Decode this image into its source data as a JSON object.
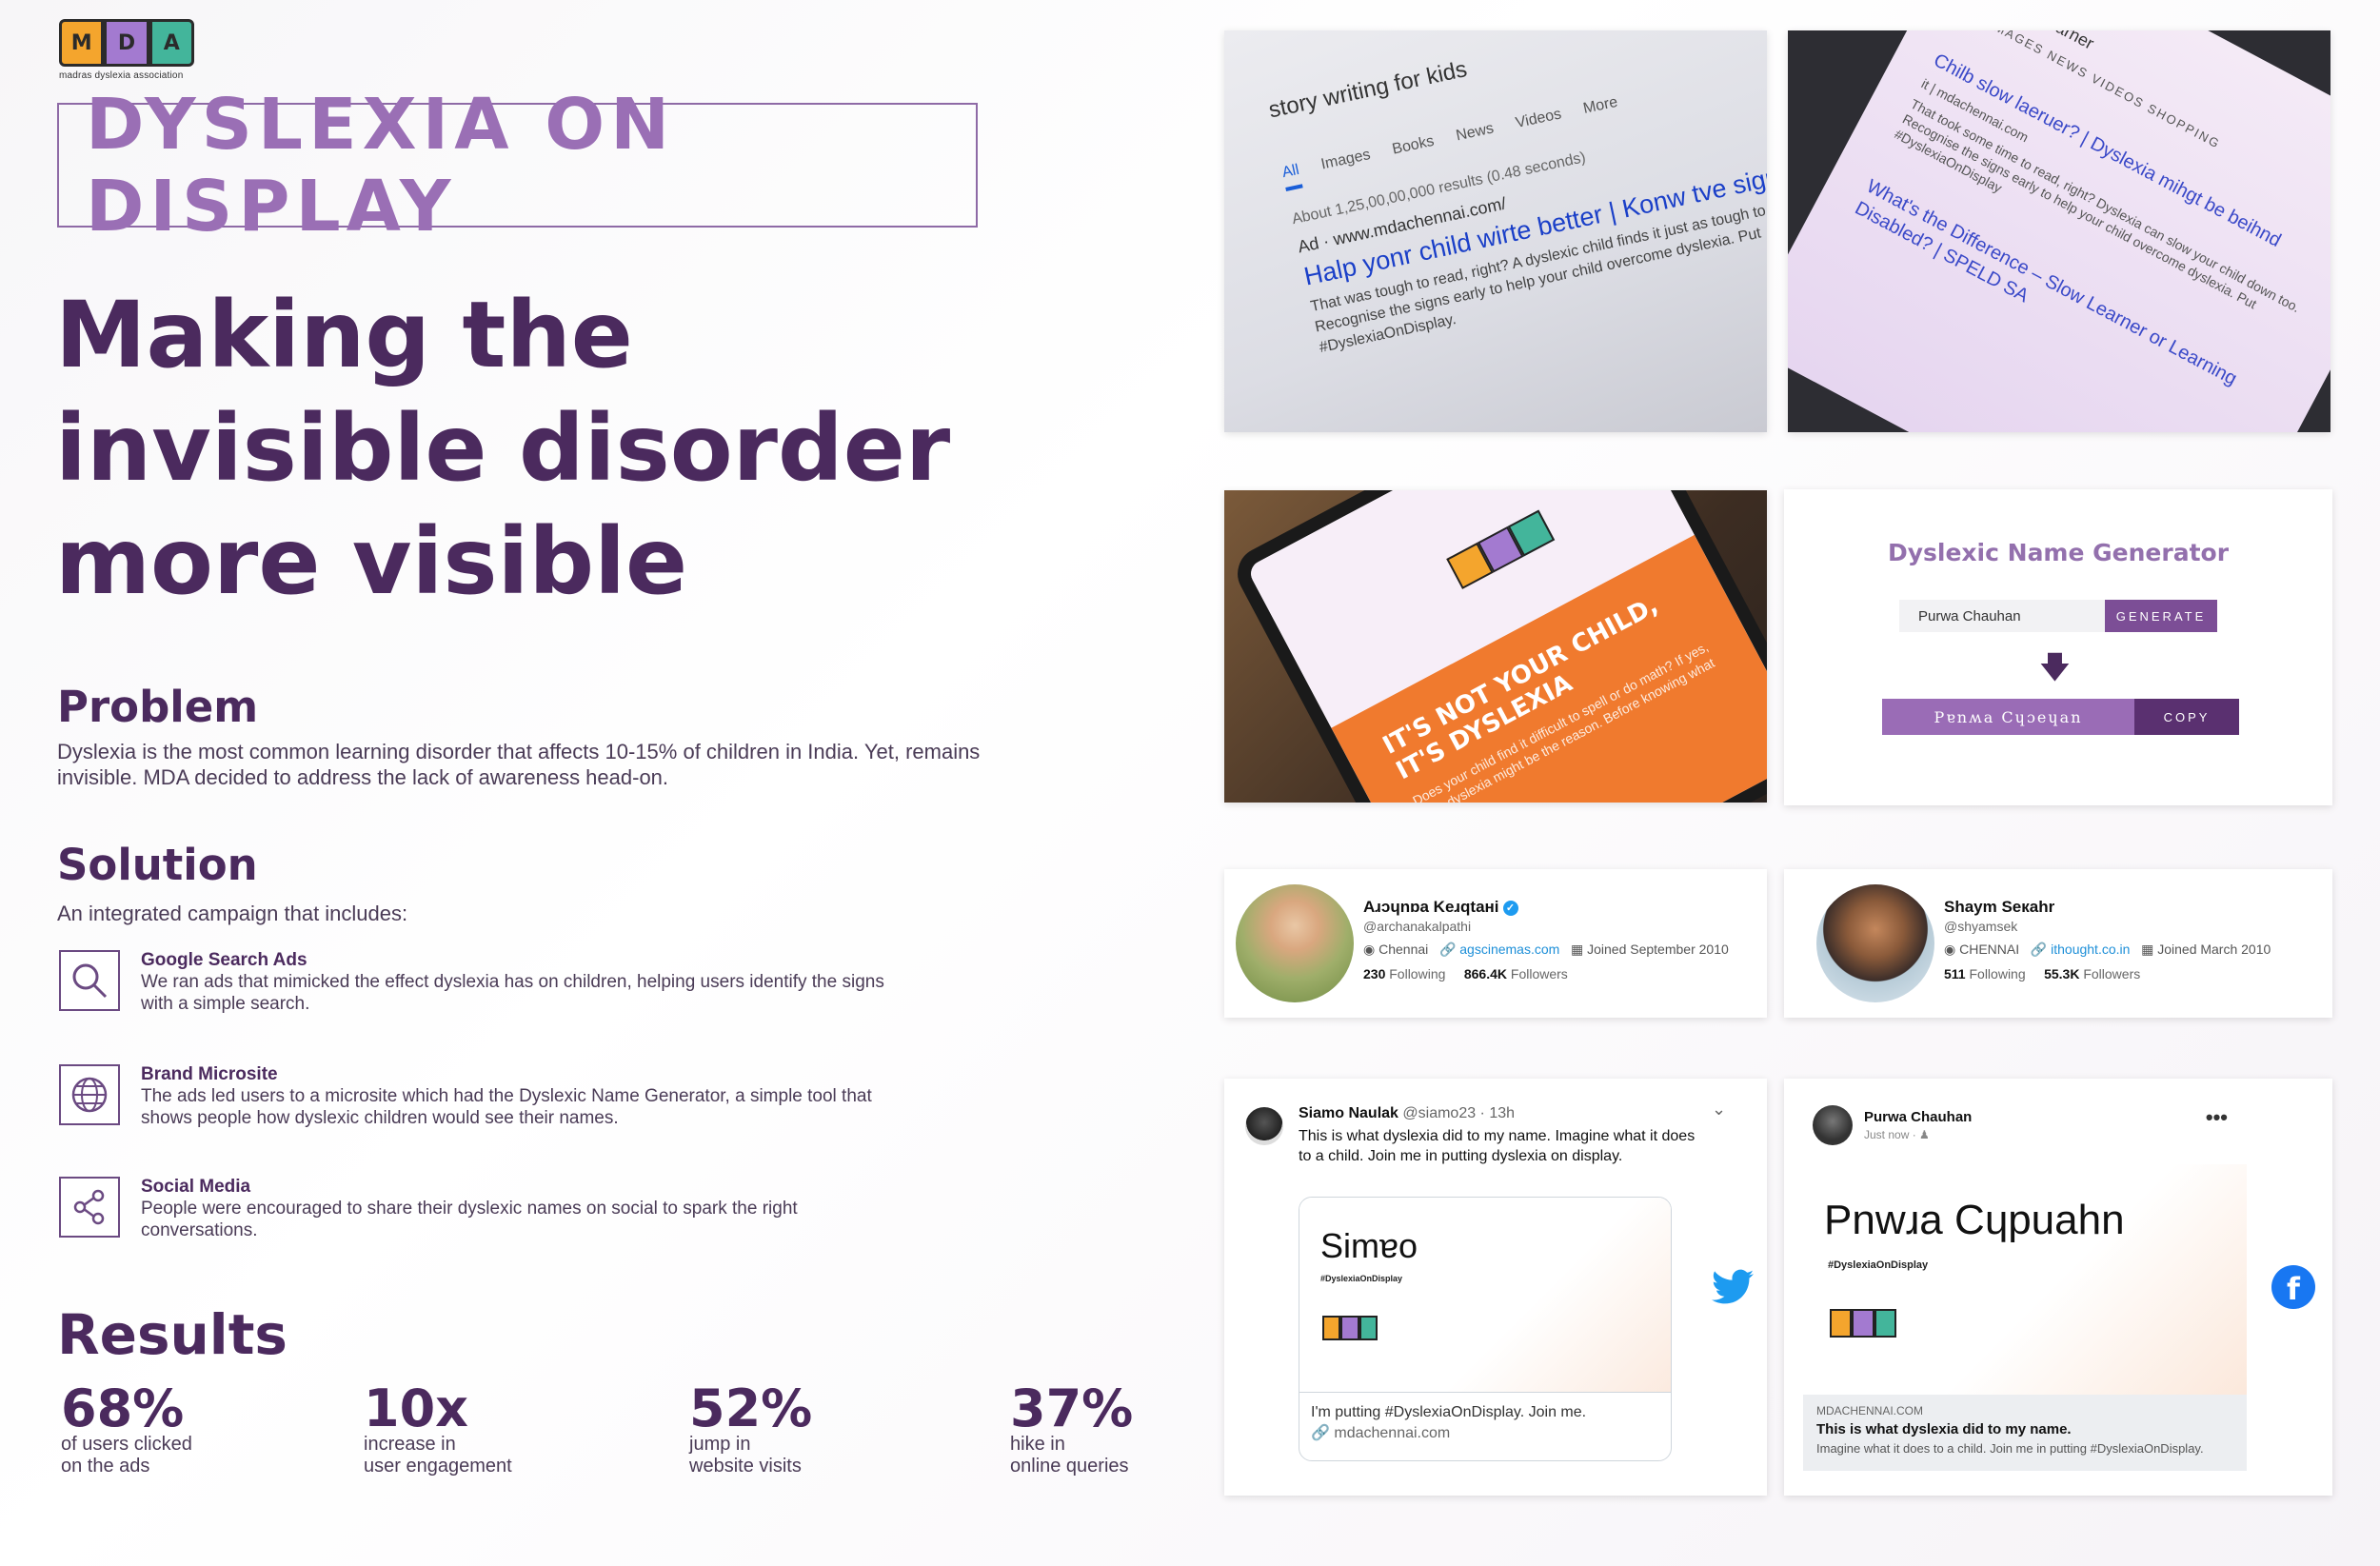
{
  "logo": {
    "letters": [
      "M",
      "D",
      "A"
    ],
    "text": "madras dyslexia association"
  },
  "campaign_title": "DYSLEXIA ON DISPLAY",
  "headline": {
    "line1": "Making the",
    "line2": "invisible disorder",
    "line3": "more visible"
  },
  "problem": {
    "heading": "Problem",
    "text": "Dyslexia is the most common learning disorder that affects 10-15% of children in India. Yet, remains invisible. MDA decided to address the lack of awareness head-on."
  },
  "solution": {
    "heading": "Solution",
    "intro": "An integrated campaign that includes:",
    "items": [
      {
        "icon": "search-icon",
        "title": "Google Search Ads",
        "desc": "We ran ads that mimicked the effect dyslexia has on children, helping users identify the signs with a simple search."
      },
      {
        "icon": "globe-icon",
        "title": "Brand Microsite",
        "desc": "The ads led users to a microsite which had the Dyslexic Name Generator, a simple tool that shows people how dyslexic children would see their names."
      },
      {
        "icon": "share-icon",
        "title": "Social Media",
        "desc": "People were encouraged to share their dyslexic names on social to spark the right conversations."
      }
    ]
  },
  "results": {
    "heading": "Results",
    "stats": [
      {
        "value": "68%",
        "label": "of users clicked\non the ads"
      },
      {
        "value": "10x",
        "label": "increase in\nuser engagement"
      },
      {
        "value": "52%",
        "label": "jump in\nwebsite visits"
      },
      {
        "value": "37%",
        "label": "hike in\nonline queries"
      }
    ]
  },
  "search_shot1": {
    "query": "story writing for kids",
    "tabs": [
      "All",
      "Images",
      "Books",
      "News",
      "Videos",
      "More"
    ],
    "about": "About 1,25,00,00,000 results (0.48 seconds)",
    "ad_line": "Ad · www.mdachennai.com/",
    "ad_title": "Halp yonr child wirte better | Konw tve sigus of dyslexia",
    "ad_desc": "That was tough to read, right? A dyslexic child finds it just as tough to read & write. Recognise the signs early to help your child overcome dyslexia. Put #DyslexiaOnDisplay."
  },
  "search_shot2": {
    "query": "child slow learner",
    "tabs": "ALL  IMAGES  NEWS  VIDEOS  SHOPPING",
    "ad_title": "Chilb slow laeruer? | Dyslexia mihgt be beihnd",
    "ad_url": "it | mdachennai.com",
    "ad_desc": "That took some time to read, right? Dyslexia can slow your child down too. Recognise the signs early to help your child overcome dyslexia. Put #DyslexiaOnDisplay",
    "result2": "What's the Difference – Slow Learner or Learning Disabled? | SPELD SA"
  },
  "phone_shot": {
    "big_text": "IT'S NOT YOUR CHILD, IT'S DYSLEXIA",
    "small_text": "Does your child find it difficult to spell or do math? If yes, then dyslexia might be the reason. Before knowing what it is..."
  },
  "name_generator": {
    "title": "Dyslexic Name Generator",
    "input_value": "Purwa Chauhan",
    "generate_label": "GENERATE",
    "result": "Pɐnʍa Cɥɔeɥan",
    "copy_label": "COPY"
  },
  "profiles": [
    {
      "name": "Aɹɔɥnɒa Keɹqtaнi",
      "handle": "@archanakalpathi",
      "location": "Chennai",
      "link": "agscinemas.com",
      "joined": "Joined September 2010",
      "following": "230",
      "following_label": "Following",
      "followers": "866.4K",
      "followers_label": "Followers",
      "verified": true
    },
    {
      "name": "Shaym Seкahr",
      "handle": "@shyamsek",
      "location": "CHENNAI",
      "link": "ithought.co.in",
      "joined": "Joined March 2010",
      "following": "511",
      "following_label": "Following",
      "followers": "55.3K",
      "followers_label": "Followers",
      "verified": false
    }
  ],
  "tweet": {
    "name": "Siamo Naulak",
    "handle": "@siamo23 · 13h",
    "text": "This is what dyslexia did to my name. Imagine what it does to a child. Join me in putting dyslexia on display.",
    "card_name": "Simɐo",
    "card_tag": "#DyslexiaOnDisplay",
    "card_caption": "I'm putting #DyslexiaOnDisplay. Join me.",
    "card_url": "mdachennai.com"
  },
  "fb_post": {
    "name": "Purwa Chauhan",
    "time": "Just now · ",
    "image_name": "Pnwɹa Cɥpuahn",
    "image_tag": "#DyslexiaOnDisplay",
    "domain": "MDACHENNAI.COM",
    "title": "This is what dyslexia did to my name.",
    "subtitle": "Imagine what it does to a child. Join me in putting #DyslexiaOnDisplay."
  },
  "colors": {
    "primary": "#4b2a5e",
    "accent": "#9a6fb5",
    "twitter": "#1d9bf0",
    "facebook": "#1877f2",
    "orange": "#f07a2e"
  }
}
